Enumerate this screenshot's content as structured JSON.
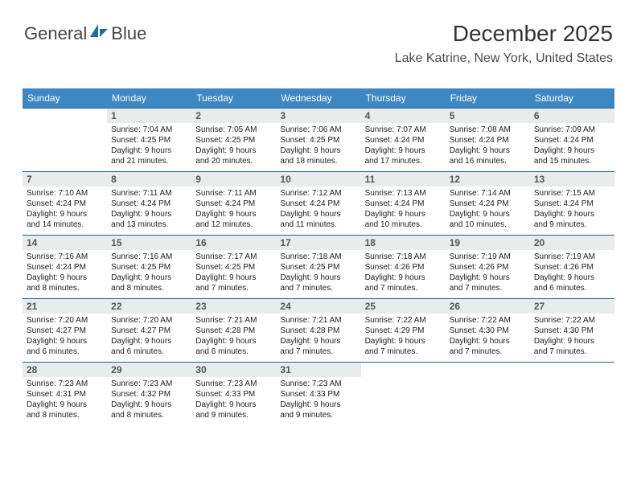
{
  "logo": {
    "word1": "General",
    "word2": "Blue"
  },
  "title": "December 2025",
  "location": "Lake Katrine, New York, United States",
  "colors": {
    "header_bg": "#3d87c3",
    "header_text": "#ffffff",
    "week_border": "#2a5f8a",
    "daynum_bg": "#e8eced",
    "daynum_text": "#555555",
    "body_text": "#222222",
    "logo_blue": "#2a7ab8"
  },
  "weekday_names": [
    "Sunday",
    "Monday",
    "Tuesday",
    "Wednesday",
    "Thursday",
    "Friday",
    "Saturday"
  ],
  "grid": {
    "first_weekday_index": 1,
    "days_in_month": 31
  },
  "days": {
    "1": {
      "sunrise": "7:04 AM",
      "sunset": "4:25 PM",
      "daylight": "9 hours and 21 minutes."
    },
    "2": {
      "sunrise": "7:05 AM",
      "sunset": "4:25 PM",
      "daylight": "9 hours and 20 minutes."
    },
    "3": {
      "sunrise": "7:06 AM",
      "sunset": "4:25 PM",
      "daylight": "9 hours and 18 minutes."
    },
    "4": {
      "sunrise": "7:07 AM",
      "sunset": "4:24 PM",
      "daylight": "9 hours and 17 minutes."
    },
    "5": {
      "sunrise": "7:08 AM",
      "sunset": "4:24 PM",
      "daylight": "9 hours and 16 minutes."
    },
    "6": {
      "sunrise": "7:09 AM",
      "sunset": "4:24 PM",
      "daylight": "9 hours and 15 minutes."
    },
    "7": {
      "sunrise": "7:10 AM",
      "sunset": "4:24 PM",
      "daylight": "9 hours and 14 minutes."
    },
    "8": {
      "sunrise": "7:11 AM",
      "sunset": "4:24 PM",
      "daylight": "9 hours and 13 minutes."
    },
    "9": {
      "sunrise": "7:11 AM",
      "sunset": "4:24 PM",
      "daylight": "9 hours and 12 minutes."
    },
    "10": {
      "sunrise": "7:12 AM",
      "sunset": "4:24 PM",
      "daylight": "9 hours and 11 minutes."
    },
    "11": {
      "sunrise": "7:13 AM",
      "sunset": "4:24 PM",
      "daylight": "9 hours and 10 minutes."
    },
    "12": {
      "sunrise": "7:14 AM",
      "sunset": "4:24 PM",
      "daylight": "9 hours and 10 minutes."
    },
    "13": {
      "sunrise": "7:15 AM",
      "sunset": "4:24 PM",
      "daylight": "9 hours and 9 minutes."
    },
    "14": {
      "sunrise": "7:16 AM",
      "sunset": "4:24 PM",
      "daylight": "9 hours and 8 minutes."
    },
    "15": {
      "sunrise": "7:16 AM",
      "sunset": "4:25 PM",
      "daylight": "9 hours and 8 minutes."
    },
    "16": {
      "sunrise": "7:17 AM",
      "sunset": "4:25 PM",
      "daylight": "9 hours and 7 minutes."
    },
    "17": {
      "sunrise": "7:18 AM",
      "sunset": "4:25 PM",
      "daylight": "9 hours and 7 minutes."
    },
    "18": {
      "sunrise": "7:18 AM",
      "sunset": "4:26 PM",
      "daylight": "9 hours and 7 minutes."
    },
    "19": {
      "sunrise": "7:19 AM",
      "sunset": "4:26 PM",
      "daylight": "9 hours and 7 minutes."
    },
    "20": {
      "sunrise": "7:19 AM",
      "sunset": "4:26 PM",
      "daylight": "9 hours and 6 minutes."
    },
    "21": {
      "sunrise": "7:20 AM",
      "sunset": "4:27 PM",
      "daylight": "9 hours and 6 minutes."
    },
    "22": {
      "sunrise": "7:20 AM",
      "sunset": "4:27 PM",
      "daylight": "9 hours and 6 minutes."
    },
    "23": {
      "sunrise": "7:21 AM",
      "sunset": "4:28 PM",
      "daylight": "9 hours and 6 minutes."
    },
    "24": {
      "sunrise": "7:21 AM",
      "sunset": "4:28 PM",
      "daylight": "9 hours and 7 minutes."
    },
    "25": {
      "sunrise": "7:22 AM",
      "sunset": "4:29 PM",
      "daylight": "9 hours and 7 minutes."
    },
    "26": {
      "sunrise": "7:22 AM",
      "sunset": "4:30 PM",
      "daylight": "9 hours and 7 minutes."
    },
    "27": {
      "sunrise": "7:22 AM",
      "sunset": "4:30 PM",
      "daylight": "9 hours and 7 minutes."
    },
    "28": {
      "sunrise": "7:23 AM",
      "sunset": "4:31 PM",
      "daylight": "9 hours and 8 minutes."
    },
    "29": {
      "sunrise": "7:23 AM",
      "sunset": "4:32 PM",
      "daylight": "9 hours and 8 minutes."
    },
    "30": {
      "sunrise": "7:23 AM",
      "sunset": "4:33 PM",
      "daylight": "9 hours and 9 minutes."
    },
    "31": {
      "sunrise": "7:23 AM",
      "sunset": "4:33 PM",
      "daylight": "9 hours and 9 minutes."
    }
  },
  "labels": {
    "sunrise": "Sunrise:",
    "sunset": "Sunset:",
    "daylight": "Daylight:"
  }
}
